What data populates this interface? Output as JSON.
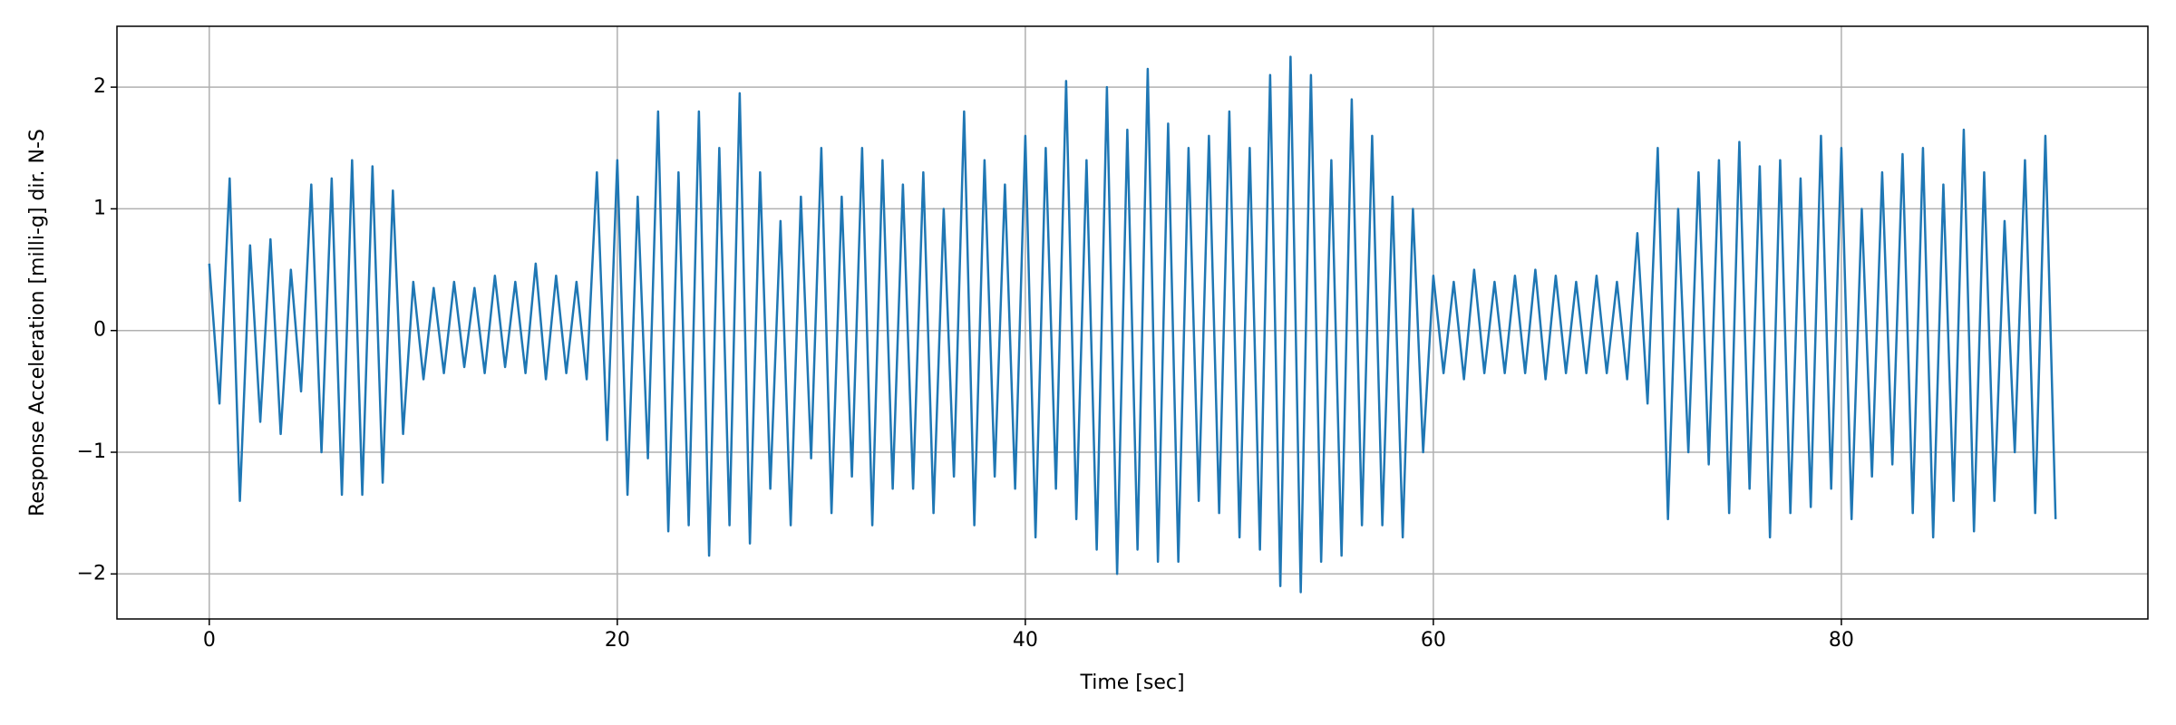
{
  "chart_data": {
    "type": "line",
    "xlabel": "Time [sec]",
    "ylabel": "Response Acceleration [milli-g] dir. N-S",
    "color": "#1f77b4",
    "grid": true,
    "xlim": [
      -4.525,
      95.025
    ],
    "ylim": [
      -2.37,
      2.5
    ],
    "xticks": [
      0,
      20,
      40,
      60,
      80
    ],
    "yticks": [
      {
        "value": -2,
        "label": "−2"
      },
      {
        "value": -1,
        "label": "−1"
      },
      0,
      1,
      2
    ],
    "x": [
      0,
      0.5,
      1,
      1.5,
      2,
      2.5,
      3,
      3.5,
      4,
      4.5,
      5,
      5.5,
      6,
      6.5,
      7,
      7.5,
      8,
      8.5,
      9,
      9.5,
      10,
      10.5,
      11,
      11.5,
      12,
      12.5,
      13,
      13.5,
      14,
      14.5,
      15,
      15.5,
      16,
      16.5,
      17,
      17.5,
      18,
      18.5,
      19,
      19.5,
      20,
      20.5,
      21,
      21.5,
      22,
      22.5,
      23,
      23.5,
      24,
      24.5,
      25,
      25.5,
      26,
      26.5,
      27,
      27.5,
      28,
      28.5,
      29,
      29.5,
      30,
      30.5,
      31,
      31.5,
      32,
      32.5,
      33,
      33.5,
      34,
      34.5,
      35,
      35.5,
      36,
      36.5,
      37,
      37.5,
      38,
      38.5,
      39,
      39.5,
      40,
      40.5,
      41,
      41.5,
      42,
      42.5,
      43,
      43.5,
      44,
      44.5,
      45,
      45.5,
      46,
      46.5,
      47,
      47.5,
      48,
      48.5,
      49,
      49.5,
      50,
      50.5,
      51,
      51.5,
      52,
      52.5,
      53,
      53.5,
      54,
      54.5,
      55,
      55.5,
      56,
      56.5,
      57,
      57.5,
      58,
      58.5,
      59,
      59.5,
      60,
      60.5,
      61,
      61.5,
      62,
      62.5,
      63,
      63.5,
      64,
      64.5,
      65,
      65.5,
      66,
      66.5,
      67,
      67.5,
      68,
      68.5,
      69,
      69.5,
      70,
      70.5,
      71,
      71.5,
      72,
      72.5,
      73,
      73.5,
      74,
      74.5,
      75,
      75.5,
      76,
      76.5,
      77,
      77.5,
      78,
      78.5,
      79,
      79.5,
      80,
      80.5,
      81,
      81.5,
      82,
      82.5,
      83,
      83.5,
      84,
      84.5,
      85,
      85.5,
      86,
      86.5,
      87,
      87.5,
      88,
      88.5,
      89,
      89.5,
      90,
      90.5
    ],
    "values": [
      0.55,
      -0.6,
      1.25,
      -1.4,
      0.7,
      -0.75,
      0.75,
      -0.85,
      0.5,
      -0.5,
      1.2,
      -1.0,
      1.25,
      -1.35,
      1.4,
      -1.35,
      1.35,
      -1.25,
      1.15,
      -0.85,
      0.4,
      -0.4,
      0.35,
      -0.35,
      0.4,
      -0.3,
      0.35,
      -0.35,
      0.45,
      -0.3,
      0.4,
      -0.35,
      0.55,
      -0.4,
      0.45,
      -0.35,
      0.4,
      -0.4,
      1.3,
      -0.9,
      1.4,
      -1.35,
      1.1,
      -1.05,
      1.8,
      -1.65,
      1.3,
      -1.6,
      1.8,
      -1.85,
      1.5,
      -1.6,
      1.95,
      -1.75,
      1.3,
      -1.3,
      0.9,
      -1.6,
      1.1,
      -1.05,
      1.5,
      -1.5,
      1.1,
      -1.2,
      1.5,
      -1.6,
      1.4,
      -1.3,
      1.2,
      -1.3,
      1.3,
      -1.5,
      1.0,
      -1.2,
      1.8,
      -1.6,
      1.4,
      -1.2,
      1.2,
      -1.3,
      1.6,
      -1.7,
      1.5,
      -1.3,
      2.05,
      -1.55,
      1.4,
      -1.8,
      2.0,
      -2.0,
      1.65,
      -1.8,
      2.15,
      -1.9,
      1.7,
      -1.9,
      1.5,
      -1.4,
      1.6,
      -1.5,
      1.8,
      -1.7,
      1.5,
      -1.8,
      2.1,
      -2.1,
      2.25,
      -2.15,
      2.1,
      -1.9,
      1.4,
      -1.85,
      1.9,
      -1.6,
      1.6,
      -1.6,
      1.1,
      -1.7,
      1.0,
      -1.0,
      0.45,
      -0.35,
      0.4,
      -0.4,
      0.5,
      -0.35,
      0.4,
      -0.35,
      0.45,
      -0.35,
      0.5,
      -0.4,
      0.45,
      -0.35,
      0.4,
      -0.35,
      0.45,
      -0.35,
      0.4,
      -0.4,
      0.8,
      -0.6,
      1.5,
      -1.55,
      1.0,
      -1.0,
      1.3,
      -1.1,
      1.4,
      -1.5,
      1.55,
      -1.3,
      1.35,
      -1.7,
      1.4,
      -1.5,
      1.25,
      -1.45,
      1.6,
      -1.3,
      1.5,
      -1.55,
      1.0,
      -1.2,
      1.3,
      -1.1,
      1.45,
      -1.5,
      1.5,
      -1.7,
      1.2,
      -1.4,
      1.65,
      -1.65,
      1.3,
      -1.4,
      0.9,
      -1.0,
      1.4,
      -1.5,
      1.6,
      -1.55
    ]
  }
}
